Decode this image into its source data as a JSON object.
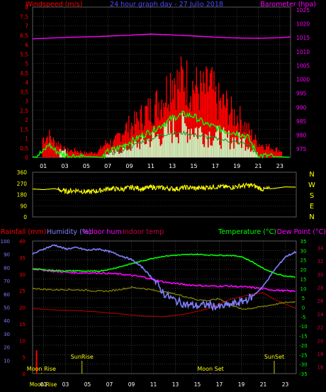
{
  "header": {
    "windspeed_label": "Windspeed (m/s)",
    "title": "24 hour graph day - 27 Julio 2018",
    "barometer_label": "Barometer (hpa)"
  },
  "colors": {
    "background": "#000000",
    "grid": "#5a5a5a",
    "red": "#ff0000",
    "magenta": "#ff00ff",
    "yellow": "#ffff00",
    "green": "#00ff00",
    "lightgreen": "#c8ffc8",
    "blue": "#4a4aff",
    "periwinkle": "#8080ff",
    "olive": "#808000",
    "crimson": "#cc0044",
    "darkred": "#b00000"
  },
  "chart_data": [
    {
      "id": "wind",
      "type": "bar",
      "title": "24 hour graph day - 27 Julio 2018",
      "ylabel": "Windspeed (m/s)",
      "y2label": "Barometer (hpa)",
      "ylim": [
        0,
        8
      ],
      "y2lim": [
        972,
        1026
      ],
      "yticks": [
        "0",
        "0,5",
        "1",
        "1,5",
        "2",
        "2,5",
        "3",
        "3,5",
        "4",
        "4,5",
        "5",
        "5,5",
        "6",
        "6,5",
        "7",
        "7,5",
        "8"
      ],
      "y2ticks": [
        "975",
        "980",
        "985",
        "990",
        "995",
        "1000",
        "1005",
        "1010",
        "1015",
        "1020",
        "1025"
      ],
      "xticks": [
        "01",
        "03",
        "05",
        "07",
        "09",
        "11",
        "13",
        "15",
        "17",
        "19",
        "21",
        "23"
      ],
      "xlim": [
        0,
        24
      ],
      "grid": true,
      "gust_peaks": [
        {
          "h": 1.0,
          "v": 1.4
        },
        {
          "h": 1.5,
          "v": 1.6
        },
        {
          "h": 2.0,
          "v": 1.1
        },
        {
          "h": 2.5,
          "v": 1.0
        },
        {
          "h": 3.0,
          "v": 0.5
        },
        {
          "h": 4.0,
          "v": 0.5
        },
        {
          "h": 5.0,
          "v": 0.3
        },
        {
          "h": 6.0,
          "v": 0.4
        },
        {
          "h": 7.0,
          "v": 1.2
        },
        {
          "h": 7.5,
          "v": 1.0
        },
        {
          "h": 8.0,
          "v": 1.6
        },
        {
          "h": 8.5,
          "v": 2.1
        },
        {
          "h": 9.0,
          "v": 2.3
        },
        {
          "h": 9.5,
          "v": 2.5
        },
        {
          "h": 10.0,
          "v": 2.9
        },
        {
          "h": 10.5,
          "v": 3.3
        },
        {
          "h": 11.0,
          "v": 3.5
        },
        {
          "h": 11.5,
          "v": 3.9
        },
        {
          "h": 12.0,
          "v": 4.3
        },
        {
          "h": 12.5,
          "v": 5.0
        },
        {
          "h": 13.0,
          "v": 6.2
        },
        {
          "h": 13.5,
          "v": 5.2
        },
        {
          "h": 14.0,
          "v": 5.9
        },
        {
          "h": 14.5,
          "v": 5.3
        },
        {
          "h": 15.0,
          "v": 5.2
        },
        {
          "h": 15.5,
          "v": 4.9
        },
        {
          "h": 16.0,
          "v": 4.8
        },
        {
          "h": 16.5,
          "v": 5.4
        },
        {
          "h": 17.0,
          "v": 4.2
        },
        {
          "h": 17.5,
          "v": 3.9
        },
        {
          "h": 18.0,
          "v": 3.8
        },
        {
          "h": 18.5,
          "v": 3.2
        },
        {
          "h": 19.0,
          "v": 3.0
        },
        {
          "h": 19.5,
          "v": 2.6
        },
        {
          "h": 20.0,
          "v": 2.0
        },
        {
          "h": 20.5,
          "v": 1.5
        },
        {
          "h": 21.0,
          "v": 1.0
        },
        {
          "h": 23.0,
          "v": 0.5
        }
      ],
      "avg_speed": [
        {
          "h": 0,
          "v": 0
        },
        {
          "h": 1.0,
          "v": 0.3
        },
        {
          "h": 1.5,
          "v": 0.7
        },
        {
          "h": 2.0,
          "v": 0.4
        },
        {
          "h": 3.0,
          "v": 0.1
        },
        {
          "h": 6.5,
          "v": 0
        },
        {
          "h": 7.0,
          "v": 0.3
        },
        {
          "h": 8.0,
          "v": 0.5
        },
        {
          "h": 9.0,
          "v": 0.8
        },
        {
          "h": 10.0,
          "v": 1.1
        },
        {
          "h": 11.0,
          "v": 1.4
        },
        {
          "h": 12.0,
          "v": 1.7
        },
        {
          "h": 13.0,
          "v": 2.1
        },
        {
          "h": 14.0,
          "v": 2.3
        },
        {
          "h": 15.0,
          "v": 2.2
        },
        {
          "h": 16.0,
          "v": 1.8
        },
        {
          "h": 17.0,
          "v": 1.6
        },
        {
          "h": 18.0,
          "v": 1.4
        },
        {
          "h": 19.0,
          "v": 1.3
        },
        {
          "h": 20.0,
          "v": 1.1
        },
        {
          "h": 21.0,
          "v": 0.1
        },
        {
          "h": 24,
          "v": 0
        }
      ],
      "avg_gust": [
        {
          "h": 7.0,
          "v": 0.2
        },
        {
          "h": 8.0,
          "v": 0.3
        },
        {
          "h": 9.0,
          "v": 0.5
        },
        {
          "h": 10.0,
          "v": 0.8
        },
        {
          "h": 11.0,
          "v": 1.0
        },
        {
          "h": 12.0,
          "v": 1.2
        },
        {
          "h": 13.0,
          "v": 1.3
        },
        {
          "h": 14.0,
          "v": 1.3
        },
        {
          "h": 15.0,
          "v": 1.2
        },
        {
          "h": 16.0,
          "v": 1.1
        },
        {
          "h": 17.0,
          "v": 1.0
        },
        {
          "h": 18.0,
          "v": 0.9
        },
        {
          "h": 19.0,
          "v": 0.8
        },
        {
          "h": 20.0,
          "v": 0.7
        },
        {
          "h": 21.0,
          "v": 0.1
        }
      ],
      "barometer": [
        {
          "h": 0,
          "v": 1014.6
        },
        {
          "h": 3,
          "v": 1015.1
        },
        {
          "h": 6,
          "v": 1015.4
        },
        {
          "h": 9,
          "v": 1015.9
        },
        {
          "h": 11,
          "v": 1016.3
        },
        {
          "h": 13,
          "v": 1016.0
        },
        {
          "h": 15,
          "v": 1015.6
        },
        {
          "h": 17,
          "v": 1015.2
        },
        {
          "h": 19,
          "v": 1014.9
        },
        {
          "h": 21,
          "v": 1014.8
        },
        {
          "h": 23,
          "v": 1015.0
        },
        {
          "h": 24,
          "v": 1015.3
        }
      ]
    },
    {
      "id": "direction",
      "type": "line",
      "ylim": [
        0,
        360
      ],
      "yticks": [
        "0",
        "90",
        "180",
        "270",
        "360"
      ],
      "compass": [
        "N",
        "W",
        "S",
        "E",
        "N"
      ],
      "grid": true,
      "points": [
        {
          "h": 0,
          "v": 225
        },
        {
          "h": 1,
          "v": 220
        },
        {
          "h": 2,
          "v": 228
        },
        {
          "h": 3,
          "v": 205
        },
        {
          "h": 4,
          "v": 215
        },
        {
          "h": 5,
          "v": 200
        },
        {
          "h": 6,
          "v": 210
        },
        {
          "h": 7,
          "v": 230
        },
        {
          "h": 8,
          "v": 222
        },
        {
          "h": 9,
          "v": 238
        },
        {
          "h": 10,
          "v": 228
        },
        {
          "h": 11,
          "v": 240
        },
        {
          "h": 12,
          "v": 232
        },
        {
          "h": 13,
          "v": 226
        },
        {
          "h": 14,
          "v": 238
        },
        {
          "h": 15,
          "v": 230
        },
        {
          "h": 16,
          "v": 240
        },
        {
          "h": 17,
          "v": 245
        },
        {
          "h": 18,
          "v": 238
        },
        {
          "h": 19,
          "v": 250
        },
        {
          "h": 20,
          "v": 255
        },
        {
          "h": 21,
          "v": 222
        },
        {
          "h": 22,
          "v": 230
        },
        {
          "h": 23,
          "v": 242
        },
        {
          "h": 24,
          "v": 240
        }
      ]
    },
    {
      "id": "temphum",
      "type": "line",
      "legend": [
        "Rainfall (mm)",
        "Humidity (%)",
        "Indoor hum",
        "Indoor temp",
        "Temperature (°C)",
        "Dew Point (°C)"
      ],
      "ylim_hum": [
        0,
        100
      ],
      "ylim_temp": [
        -35,
        35
      ],
      "ylim_rain": [
        0,
        40
      ],
      "left_ticks": [
        "0",
        "5",
        "10",
        "15",
        "20",
        "25",
        "30",
        "35",
        "40"
      ],
      "hum_ticks": [
        "10",
        "20",
        "30",
        "40",
        "50",
        "60",
        "70",
        "80",
        "90",
        "100"
      ],
      "temp_ticks": [
        "-35",
        "-30",
        "-25",
        "-20",
        "-15",
        "-10",
        "-5",
        "0",
        "5",
        "10",
        "15",
        "20",
        "25",
        "30",
        "35"
      ],
      "right_ticks": [
        "16",
        "18",
        "20",
        "22",
        "24",
        "26",
        "28",
        "30",
        "32",
        "34"
      ],
      "xticks": [
        "Moon Rise",
        "01",
        "03",
        "05",
        "07",
        "09",
        "11",
        "13",
        "15",
        "17",
        "19",
        "21",
        "23"
      ],
      "grid": true,
      "events": [
        {
          "h": 0.8,
          "label": "Moon Rise",
          "row": "bottom"
        },
        {
          "h": 4.5,
          "label": "SunRise",
          "row": "mid"
        },
        {
          "h": 16.2,
          "label": "Moon Set",
          "row": "bottom"
        },
        {
          "h": 22.0,
          "label": "SunSet",
          "row": "mid"
        }
      ],
      "humidity": [
        {
          "h": 0,
          "v": 90
        },
        {
          "h": 1,
          "v": 94
        },
        {
          "h": 2,
          "v": 97
        },
        {
          "h": 3,
          "v": 94
        },
        {
          "h": 4,
          "v": 95
        },
        {
          "h": 5,
          "v": 93
        },
        {
          "h": 6,
          "v": 94
        },
        {
          "h": 7,
          "v": 92
        },
        {
          "h": 8,
          "v": 89
        },
        {
          "h": 9,
          "v": 86
        },
        {
          "h": 10,
          "v": 80
        },
        {
          "h": 11,
          "v": 71
        },
        {
          "h": 12,
          "v": 60
        },
        {
          "h": 13,
          "v": 55
        },
        {
          "h": 14,
          "v": 52
        },
        {
          "h": 15,
          "v": 51
        },
        {
          "h": 16,
          "v": 52
        },
        {
          "h": 17,
          "v": 50
        },
        {
          "h": 18,
          "v": 52
        },
        {
          "h": 19,
          "v": 54
        },
        {
          "h": 20,
          "v": 58
        },
        {
          "h": 21,
          "v": 66
        },
        {
          "h": 22,
          "v": 78
        },
        {
          "h": 23,
          "v": 88
        },
        {
          "h": 24,
          "v": 92
        }
      ],
      "temperature": [
        {
          "h": 0,
          "v": 20.5
        },
        {
          "h": 1,
          "v": 19.8
        },
        {
          "h": 2,
          "v": 19.5
        },
        {
          "h": 3,
          "v": 19.2
        },
        {
          "h": 4,
          "v": 19.3
        },
        {
          "h": 5,
          "v": 19.0
        },
        {
          "h": 6,
          "v": 19.1
        },
        {
          "h": 7,
          "v": 20.0
        },
        {
          "h": 8,
          "v": 21.5
        },
        {
          "h": 9,
          "v": 23.0
        },
        {
          "h": 10,
          "v": 24.5
        },
        {
          "h": 11,
          "v": 26.0
        },
        {
          "h": 12,
          "v": 27.0
        },
        {
          "h": 13,
          "v": 27.5
        },
        {
          "h": 14,
          "v": 27.8
        },
        {
          "h": 15,
          "v": 28.0
        },
        {
          "h": 16,
          "v": 27.6
        },
        {
          "h": 17,
          "v": 27.5
        },
        {
          "h": 18,
          "v": 27.4
        },
        {
          "h": 19,
          "v": 26.8
        },
        {
          "h": 20,
          "v": 24.0
        },
        {
          "h": 21,
          "v": 20.5
        },
        {
          "h": 22,
          "v": 18.0
        },
        {
          "h": 23,
          "v": 16.5
        },
        {
          "h": 24,
          "v": 16.0
        }
      ],
      "dewpoint": [
        {
          "h": 0,
          "v": 10.0
        },
        {
          "h": 1,
          "v": 9.5
        },
        {
          "h": 2,
          "v": 9.2
        },
        {
          "h": 3,
          "v": 9.4
        },
        {
          "h": 4,
          "v": 9.2
        },
        {
          "h": 5,
          "v": 9.0
        },
        {
          "h": 6,
          "v": 8.5
        },
        {
          "h": 7,
          "v": 8.6
        },
        {
          "h": 8,
          "v": 9.5
        },
        {
          "h": 9,
          "v": 10.5
        },
        {
          "h": 10,
          "v": 10.0
        },
        {
          "h": 11,
          "v": 9.0
        },
        {
          "h": 12,
          "v": 8.0
        },
        {
          "h": 13,
          "v": 7.0
        },
        {
          "h": 14,
          "v": 5.5
        },
        {
          "h": 15,
          "v": 4.0
        },
        {
          "h": 16,
          "v": 3.5
        },
        {
          "h": 17,
          "v": 4.5
        },
        {
          "h": 18,
          "v": 1.5
        },
        {
          "h": 19,
          "v": -1.0
        },
        {
          "h": 20,
          "v": -0.5
        },
        {
          "h": 21,
          "v": 0.5
        },
        {
          "h": 22,
          "v": 1.5
        },
        {
          "h": 23,
          "v": 2.5
        },
        {
          "h": 24,
          "v": 3.0
        }
      ],
      "indoor_hum": [
        {
          "h": 0,
          "v": 79
        },
        {
          "h": 2,
          "v": 77
        },
        {
          "h": 4,
          "v": 76
        },
        {
          "h": 6,
          "v": 76
        },
        {
          "h": 8,
          "v": 75
        },
        {
          "h": 10,
          "v": 73
        },
        {
          "h": 12,
          "v": 69
        },
        {
          "h": 14,
          "v": 67
        },
        {
          "h": 16,
          "v": 66
        },
        {
          "h": 18,
          "v": 66
        },
        {
          "h": 20,
          "v": 65
        },
        {
          "h": 22,
          "v": 63
        },
        {
          "h": 24,
          "v": 62
        }
      ],
      "indoor_temp": [
        {
          "h": 0,
          "v": 24.8
        },
        {
          "h": 2,
          "v": 24.6
        },
        {
          "h": 4,
          "v": 24.5
        },
        {
          "h": 6,
          "v": 24.3
        },
        {
          "h": 8,
          "v": 24.0
        },
        {
          "h": 10,
          "v": 23.7
        },
        {
          "h": 12,
          "v": 23.6
        },
        {
          "h": 14,
          "v": 24.0
        },
        {
          "h": 16,
          "v": 24.8
        },
        {
          "h": 18,
          "v": 26.2
        },
        {
          "h": 20,
          "v": 27.0
        },
        {
          "h": 21,
          "v": 27.2
        },
        {
          "h": 22,
          "v": 26.2
        },
        {
          "h": 23,
          "v": 25.5
        },
        {
          "h": 24,
          "v": 24.8
        }
      ],
      "rainfall": [
        {
          "h": 0.1,
          "v": 7
        }
      ]
    }
  ]
}
